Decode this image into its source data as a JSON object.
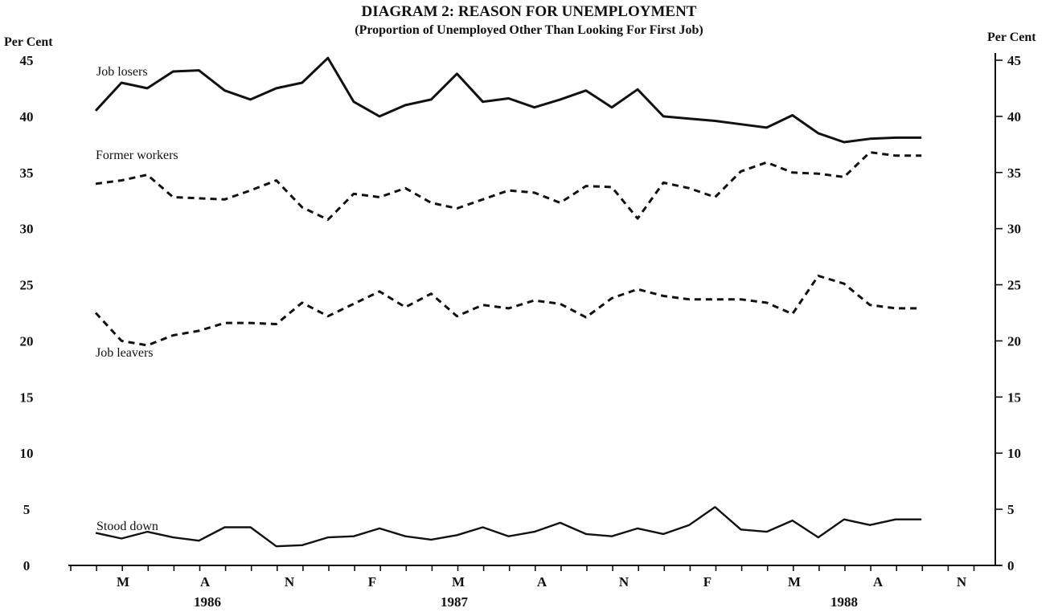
{
  "chart_data": {
    "type": "line",
    "title": "DIAGRAM 2: REASON FOR UNEMPLOYMENT",
    "subtitle": "(Proportion of Unemployed Other Than Looking For First Job)",
    "ylabel_left": "Per Cent",
    "ylabel_right": "Per Cent",
    "ylim": [
      0,
      45
    ],
    "yticks": [
      "0",
      "5",
      "10",
      "15",
      "20",
      "25",
      "30",
      "35",
      "40",
      "45"
    ],
    "x_month_labels": [
      "M",
      "A",
      "N",
      "F",
      "M",
      "A",
      "N",
      "F",
      "M",
      "A",
      "N"
    ],
    "x_year_labels": [
      "1986",
      "1987",
      "1988"
    ],
    "x_points": 33,
    "grid": false,
    "legend": "labels placed on the plot next to each series",
    "series": [
      {
        "name": "Job losers",
        "style": "solid",
        "values": [
          40.5,
          43.0,
          42.5,
          44.0,
          44.1,
          42.3,
          41.5,
          42.5,
          43.0,
          45.2,
          41.3,
          40.0,
          41.0,
          41.5,
          43.8,
          41.3,
          41.6,
          40.8,
          41.5,
          42.3,
          40.8,
          42.4,
          40.0,
          39.8,
          39.6,
          39.3,
          39.0,
          40.1,
          38.5,
          37.7,
          38.0,
          38.1,
          38.1
        ]
      },
      {
        "name": "Former workers",
        "style": "dashed",
        "values": [
          34.0,
          34.3,
          34.8,
          32.8,
          32.7,
          32.6,
          33.4,
          34.3,
          31.9,
          30.8,
          33.1,
          32.8,
          33.6,
          32.3,
          31.8,
          32.6,
          33.4,
          33.2,
          32.3,
          33.8,
          33.7,
          30.9,
          34.1,
          33.6,
          32.8,
          35.1,
          35.9,
          35.0,
          34.9,
          34.6,
          36.8,
          36.5,
          36.5
        ]
      },
      {
        "name": "Job leavers",
        "style": "dashed",
        "values": [
          22.5,
          20.0,
          19.6,
          20.5,
          20.9,
          21.6,
          21.6,
          21.5,
          23.4,
          22.2,
          23.3,
          24.4,
          23.0,
          24.2,
          22.2,
          23.2,
          22.9,
          23.6,
          23.3,
          22.1,
          23.8,
          24.6,
          24.0,
          23.7,
          23.7,
          23.7,
          23.4,
          22.4,
          25.8,
          25.1,
          23.2,
          22.9,
          22.9
        ]
      },
      {
        "name": "Stood down",
        "style": "solid",
        "values": [
          2.9,
          2.4,
          3.0,
          2.5,
          2.2,
          3.4,
          3.4,
          1.7,
          1.8,
          2.5,
          2.6,
          3.3,
          2.6,
          2.3,
          2.7,
          3.4,
          2.6,
          3.0,
          3.8,
          2.8,
          2.6,
          3.3,
          2.8,
          3.6,
          5.2,
          3.2,
          3.0,
          4.0,
          2.5,
          4.1,
          3.6,
          4.1,
          4.1
        ]
      }
    ]
  }
}
